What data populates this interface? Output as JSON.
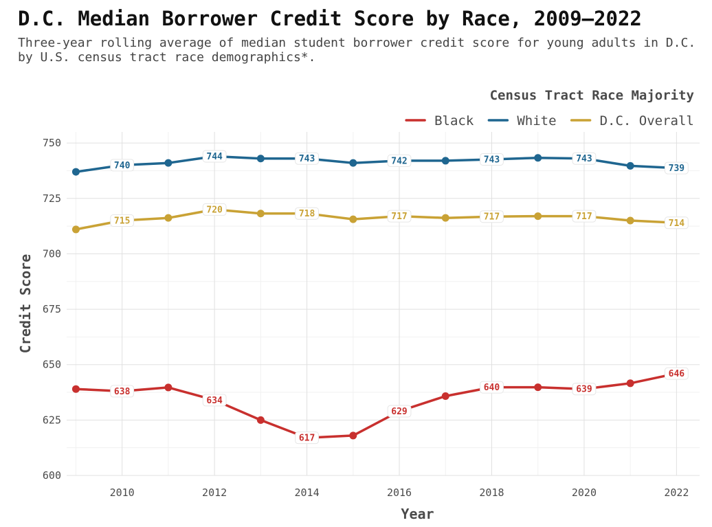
{
  "chart_data": {
    "type": "line",
    "title": "D.C. Median Borrower Credit Score by Race, 2009—2022",
    "subtitle": "Three-year rolling average of median student borrower credit score for young adults in D.C. by U.S. census tract race demographics*.",
    "xlabel": "Year",
    "ylabel": "Credit Score",
    "xlim": [
      2008.8,
      2022.5
    ],
    "ylim": [
      600,
      755
    ],
    "x_ticks": [
      2010,
      2012,
      2014,
      2016,
      2018,
      2020,
      2022
    ],
    "y_ticks": [
      600,
      625,
      650,
      675,
      700,
      725,
      750
    ],
    "grid": true,
    "legend": {
      "title": "Census Tract Race Majority",
      "position": "top-right"
    },
    "x": [
      2009,
      2010,
      2011,
      2012,
      2013,
      2014,
      2015,
      2016,
      2017,
      2018,
      2019,
      2020,
      2021,
      2022
    ],
    "series": [
      {
        "name": "Black",
        "color": "#c8302e",
        "values": [
          639,
          638,
          639.7,
          634,
          625,
          617,
          618,
          629,
          635.8,
          639.8,
          639.8,
          639,
          641.6,
          646
        ],
        "labels": [
          "",
          "638",
          "",
          "634",
          "",
          "617",
          "",
          "629",
          "",
          "640",
          "",
          "639",
          "",
          "646"
        ]
      },
      {
        "name": "White",
        "color": "#1f6690",
        "values": [
          737,
          740,
          741,
          744,
          743,
          743,
          741,
          742,
          742,
          742.6,
          743.3,
          743,
          739.7,
          738.7
        ],
        "labels": [
          "",
          "740",
          "",
          "744",
          "",
          "743",
          "",
          "742",
          "",
          "743",
          "",
          "743",
          "",
          "739"
        ]
      },
      {
        "name": "D.C. Overall",
        "color": "#c9a235",
        "values": [
          711,
          715,
          716.2,
          720,
          718.2,
          718.2,
          715.6,
          717,
          716.2,
          716.8,
          717,
          717,
          715,
          714
        ],
        "labels": [
          "",
          "715",
          "",
          "720",
          "",
          "718",
          "",
          "717",
          "",
          "717",
          "",
          "717",
          "",
          "714"
        ]
      }
    ]
  }
}
